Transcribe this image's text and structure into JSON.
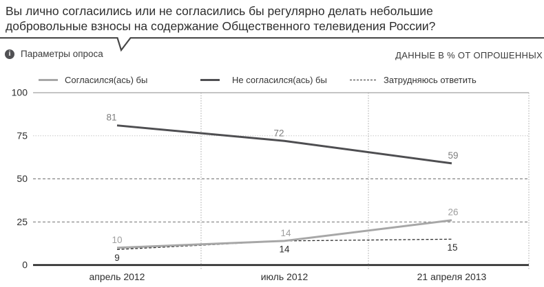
{
  "header": {
    "question_line1": "Вы лично согласились или не согласились бы регулярно делать небольшие",
    "question_line2": "добровольные взносы на содержание Общественного телевидения России?"
  },
  "meta": {
    "info_icon_glyph": "i",
    "params_label": "Параметры опроса",
    "units_note": "ДАННЫЕ В % ОТ ОПРОШЕННЫХ"
  },
  "chart_data": {
    "type": "line",
    "title": "Вы лично согласились или не согласились бы регулярно делать небольшие добровольные взносы на содержание Общественного телевидения России?",
    "categories": [
      "апрель 2012",
      "июль 2012",
      "21 апреля 2013"
    ],
    "series": [
      {
        "name": "Согласился(ась) бы",
        "values": [
          10,
          14,
          26
        ],
        "color": "#a7a7a7",
        "style": "solid",
        "label_color": "#9e9e9e",
        "label_position": "above"
      },
      {
        "name": "Не согласился(ась) бы",
        "values": [
          81,
          72,
          59
        ],
        "color": "#4e4e51",
        "style": "solid",
        "label_color": "#7d7d7d",
        "label_position": "above"
      },
      {
        "name": "Затрудняюсь ответить",
        "values": [
          9,
          14,
          15
        ],
        "color": "#2d2d2d",
        "style": "dashed",
        "label_color": "#2b2b2b",
        "label_position": "below"
      }
    ],
    "ylim": [
      0,
      100
    ],
    "yticks": [
      100,
      75,
      50,
      25,
      0
    ],
    "grid": true,
    "legend_position": "top",
    "units": "% от опрошенных"
  }
}
